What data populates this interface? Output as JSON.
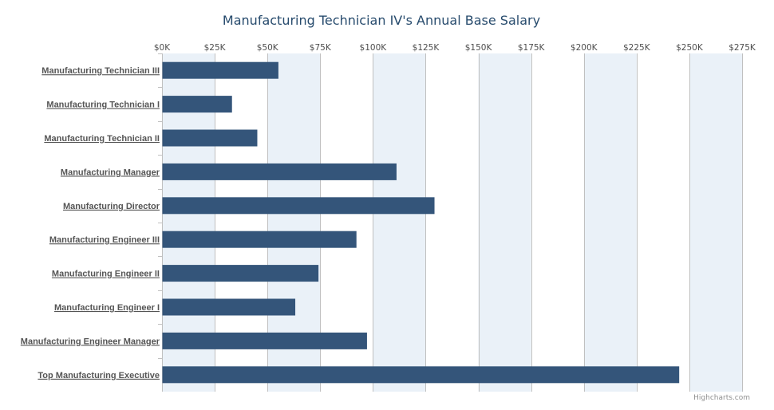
{
  "credits": "Highcharts.com",
  "colors": {
    "bar": "#34557a",
    "band": "#eaf1f8",
    "grid": "#c0c0c0",
    "title": "#274b6d",
    "label": "#555555"
  },
  "chart_data": {
    "type": "bar",
    "orientation": "horizontal",
    "title": "Manufacturing Technician IV's Annual Base Salary",
    "xlabel": "",
    "ylabel": "",
    "xlim": [
      0,
      275000
    ],
    "tick_values": [
      0,
      25000,
      50000,
      75000,
      100000,
      125000,
      150000,
      175000,
      200000,
      225000,
      250000,
      275000
    ],
    "tick_labels": [
      "$0K",
      "$25K",
      "$50K",
      "$75K",
      "$100K",
      "$125K",
      "$150K",
      "$175K",
      "$200K",
      "$225K",
      "$250K",
      "$275K"
    ],
    "axis_position": "top",
    "grid": true,
    "alternate_bands": true,
    "categories": [
      "Manufacturing Technician III",
      "Manufacturing Technician I",
      "Manufacturing Technician II",
      "Manufacturing Manager",
      "Manufacturing Director",
      "Manufacturing Engineer III",
      "Manufacturing Engineer II",
      "Manufacturing Engineer I",
      "Manufacturing Engineer Manager",
      "Top Manufacturing Executive"
    ],
    "values": [
      55000,
      33000,
      45000,
      111000,
      129000,
      92000,
      74000,
      63000,
      97000,
      245000
    ]
  }
}
